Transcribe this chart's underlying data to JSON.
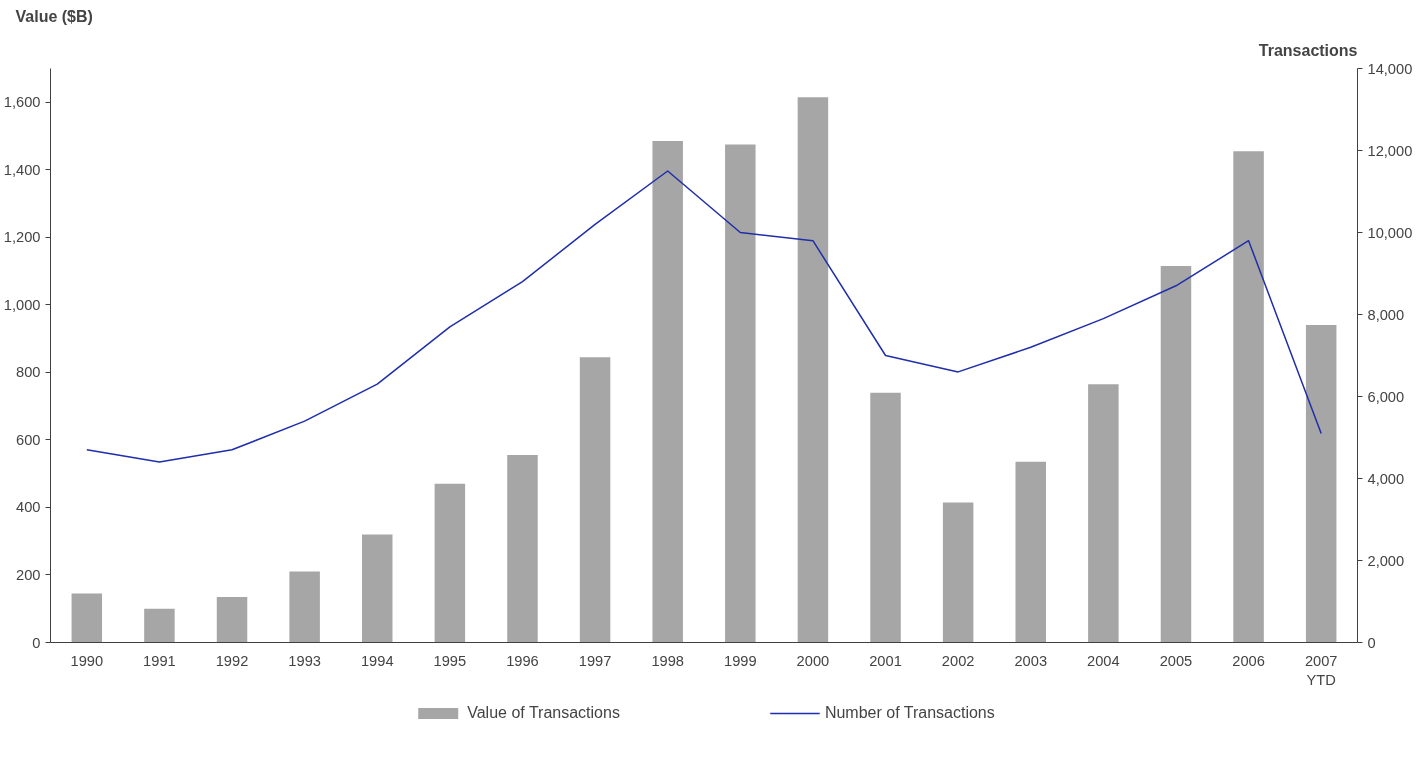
{
  "chart_data": {
    "type": "bar",
    "ylabel": "Value ($B)",
    "y2label": "Transactions",
    "categories": [
      "1990",
      "1991",
      "1992",
      "1993",
      "1994",
      "1995",
      "1996",
      "1997",
      "1998",
      "1999",
      "2000",
      "2001",
      "2002",
      "2003",
      "2004",
      "2005",
      "2006",
      "2007\nYTD"
    ],
    "series": [
      {
        "name": "Value of Transactions",
        "color": "#a6a6a6",
        "values": [
          145,
          100,
          135,
          210,
          320,
          470,
          555,
          845,
          1485,
          1475,
          1615,
          740,
          415,
          535,
          765,
          1115,
          1455,
          940
        ]
      },
      {
        "name": "Number of Transactions",
        "type": "line",
        "axis": "y2",
        "color": "#1f2eaa",
        "values": [
          4700,
          4400,
          4700,
          5400,
          6300,
          7700,
          8800,
          10200,
          11500,
          10000,
          9800,
          7000,
          6600,
          7200,
          7900,
          8700,
          9800,
          5100
        ]
      }
    ],
    "ylim": [
      0,
      1700
    ],
    "yticks": [
      {
        "value": 0,
        "label": "0"
      },
      {
        "value": 200,
        "label": "200"
      },
      {
        "value": 400,
        "label": "400"
      },
      {
        "value": 600,
        "label": "600"
      },
      {
        "value": 800,
        "label": "800"
      },
      {
        "value": 1000,
        "label": "1,000"
      },
      {
        "value": 1200,
        "label": "1,200"
      },
      {
        "value": 1400,
        "label": "1,400"
      },
      {
        "value": 1600,
        "label": "1,600"
      }
    ],
    "y2lim": [
      0,
      14000
    ],
    "y2ticks": [
      {
        "value": 0,
        "label": "0"
      },
      {
        "value": 2000,
        "label": "2,000"
      },
      {
        "value": 4000,
        "label": "4,000"
      },
      {
        "value": 6000,
        "label": "6,000"
      },
      {
        "value": 8000,
        "label": "8,000"
      },
      {
        "value": 10000,
        "label": "10,000"
      },
      {
        "value": 12000,
        "label": "12,000"
      },
      {
        "value": 14000,
        "label": "14,000"
      }
    ],
    "grid": false,
    "legend": "bottom"
  }
}
